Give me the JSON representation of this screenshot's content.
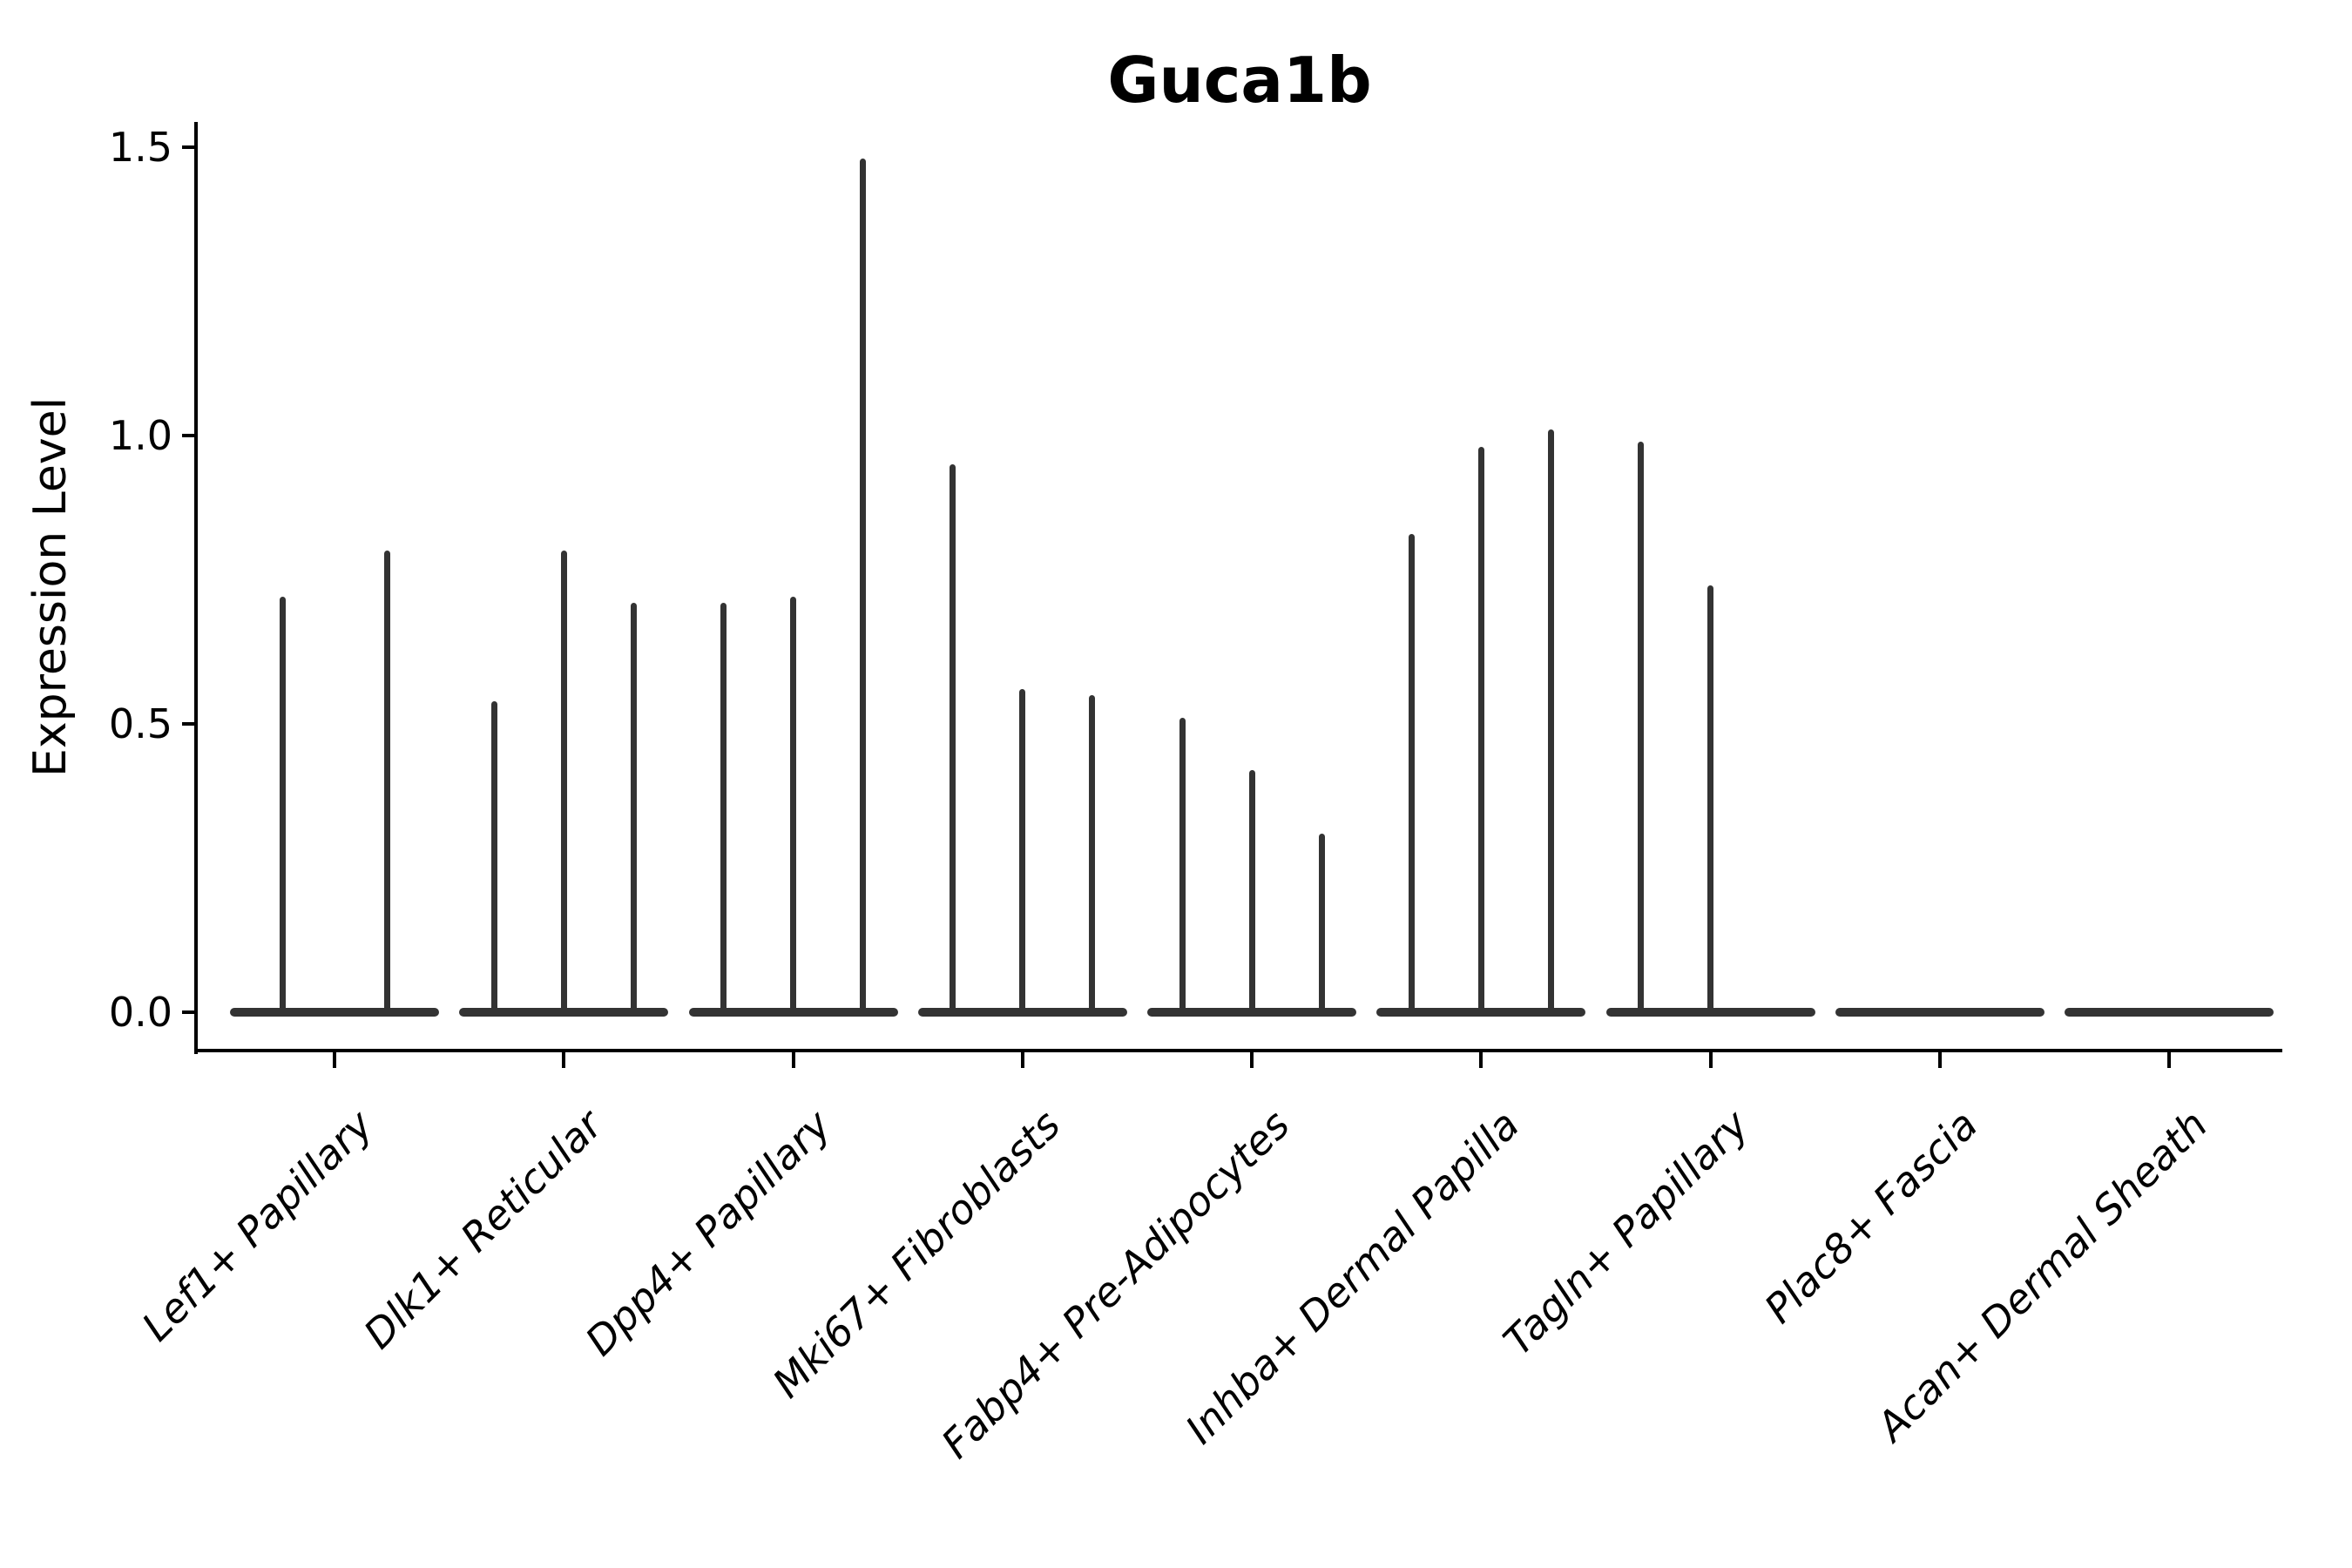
{
  "title": "Guca1b",
  "y_axis_label": "Expression Level",
  "chart_data": {
    "type": "violin",
    "title": "Guca1b",
    "ylabel": "Expression Level",
    "xlabel": "",
    "ylim": [
      0,
      1.5
    ],
    "ytick_values": [
      0.0,
      0.5,
      1.0,
      1.5
    ],
    "ytick_labels": [
      "0.0",
      "0.5",
      "1.0",
      "1.5"
    ],
    "grid": false,
    "legend_position": "none",
    "colors": {
      "violin_line": "#333333",
      "axis": "#000000",
      "text": "#000000",
      "background": "#ffffff"
    },
    "categories": [
      {
        "label": "Lef1+ Papillary",
        "sub_violins": 2,
        "spike_maxima": [
          {
            "slot": 0,
            "value": 0.72
          },
          {
            "slot": 1,
            "value": 0.8
          }
        ]
      },
      {
        "label": "Dlk1+ Reticular",
        "sub_violins": 3,
        "spike_maxima": [
          {
            "slot": 0,
            "value": 0.54
          },
          {
            "slot": 1,
            "value": 0.8
          },
          {
            "slot": 2,
            "value": 0.71
          }
        ]
      },
      {
        "label": "Dpp4+ Papillary",
        "sub_violins": 3,
        "spike_maxima": [
          {
            "slot": 0,
            "value": 0.71
          },
          {
            "slot": 1,
            "value": 0.72
          },
          {
            "slot": 2,
            "value": 1.48
          }
        ]
      },
      {
        "label": "Mki67+ Fibroblasts",
        "sub_violins": 3,
        "spike_maxima": [
          {
            "slot": 0,
            "value": 0.95
          },
          {
            "slot": 1,
            "value": 0.56
          },
          {
            "slot": 2,
            "value": 0.55
          }
        ]
      },
      {
        "label": "Fabp4+ Pre-Adipocytes",
        "sub_violins": 3,
        "spike_maxima": [
          {
            "slot": 0,
            "value": 0.51
          },
          {
            "slot": 1,
            "value": 0.42
          },
          {
            "slot": 2,
            "value": 0.31
          }
        ]
      },
      {
        "label": "Inhba+ Dermal Papilla",
        "sub_violins": 3,
        "spike_maxima": [
          {
            "slot": 0,
            "value": 0.83
          },
          {
            "slot": 1,
            "value": 0.98
          },
          {
            "slot": 2,
            "value": 1.01
          }
        ]
      },
      {
        "label": "Tagln+ Papillary",
        "sub_violins": 3,
        "spike_maxima": [
          {
            "slot": 0,
            "value": 0.99
          },
          {
            "slot": 1,
            "value": 0.74
          }
        ]
      },
      {
        "label": "Plac8+ Fascia",
        "sub_violins": 3,
        "spike_maxima": []
      },
      {
        "label": "Acan+ Dermal Sheath",
        "sub_violins": 3,
        "spike_maxima": []
      }
    ]
  }
}
